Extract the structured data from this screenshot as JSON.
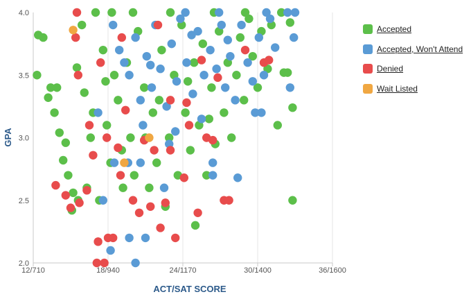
{
  "chart_data": {
    "type": "scatter",
    "title": "",
    "xlabel": "ACT/SAT SCORE",
    "ylabel": "GPA",
    "x_axis": {
      "scale": "ACT composite (paired SAT equivalent shown in tick labels)",
      "range": [
        12,
        36
      ],
      "ticks": [
        12,
        18,
        24,
        30,
        36
      ],
      "tick_labels": [
        "12/710",
        "18/940",
        "24/1170",
        "30/1400",
        "36/1600"
      ]
    },
    "y_axis": {
      "range": [
        2.0,
        4.0
      ],
      "ticks": [
        2.0,
        2.5,
        3.0,
        3.5,
        4.0
      ],
      "tick_labels": [
        "2.0",
        "2.5",
        "3.0",
        "3.5",
        "4.0"
      ]
    },
    "grid": {
      "vertical": true,
      "horizontal": false
    },
    "legend_position": "right",
    "colors": {
      "accepted": "#5cbf4a",
      "wont_attend": "#5a9bd5",
      "denied": "#e84c4c",
      "waitlisted": "#f0a742",
      "axis_title": "#2c5a8a",
      "grid": "#e6e6e6"
    },
    "series": [
      {
        "name": "Accepted",
        "key": "accepted",
        "points": [
          [
            12.4,
            3.82
          ],
          [
            12.8,
            3.8
          ],
          [
            12.3,
            3.5
          ],
          [
            13.4,
            3.4
          ],
          [
            13.9,
            3.4
          ],
          [
            13.2,
            3.32
          ],
          [
            13.7,
            3.2
          ],
          [
            14.1,
            3.04
          ],
          [
            14.6,
            2.96
          ],
          [
            14.4,
            2.82
          ],
          [
            14.8,
            2.7
          ],
          [
            15.1,
            2.42
          ],
          [
            15.2,
            2.56
          ],
          [
            15.6,
            2.5
          ],
          [
            15.5,
            3.56
          ],
          [
            15.9,
            3.9
          ],
          [
            16.1,
            3.36
          ],
          [
            16.6,
            3.0
          ],
          [
            16.3,
            2.6
          ],
          [
            16.8,
            3.2
          ],
          [
            17.3,
            2.5
          ],
          [
            17.0,
            4.0
          ],
          [
            17.6,
            3.7
          ],
          [
            17.9,
            3.1
          ],
          [
            18.2,
            2.8
          ],
          [
            18.5,
            3.5
          ],
          [
            18.8,
            3.3
          ],
          [
            19.1,
            2.9
          ],
          [
            19.5,
            3.6
          ],
          [
            19.8,
            3.0
          ],
          [
            20.1,
            2.7
          ],
          [
            20.4,
            3.85
          ],
          [
            20.9,
            3.4
          ],
          [
            21.3,
            2.6
          ],
          [
            21.6,
            3.2
          ],
          [
            21.9,
            2.8
          ],
          [
            22.3,
            3.7
          ],
          [
            22.6,
            2.45
          ],
          [
            22.9,
            3.0
          ],
          [
            23.3,
            3.5
          ],
          [
            23.6,
            2.7
          ],
          [
            23.9,
            3.9
          ],
          [
            24.2,
            3.2
          ],
          [
            24.6,
            2.9
          ],
          [
            24.9,
            3.6
          ],
          [
            25.0,
            2.3
          ],
          [
            25.3,
            3.1
          ],
          [
            25.6,
            3.75
          ],
          [
            25.9,
            2.7
          ],
          [
            26.3,
            3.4
          ],
          [
            26.6,
            2.95
          ],
          [
            26.9,
            3.85
          ],
          [
            27.3,
            3.2
          ],
          [
            27.6,
            3.6
          ],
          [
            27.9,
            3.0
          ],
          [
            28.3,
            3.5
          ],
          [
            28.6,
            3.8
          ],
          [
            28.9,
            3.3
          ],
          [
            29.3,
            3.95
          ],
          [
            29.6,
            3.65
          ],
          [
            30.0,
            3.4
          ],
          [
            30.3,
            3.85
          ],
          [
            30.8,
            3.55
          ],
          [
            31.1,
            3.9
          ],
          [
            31.6,
            3.1
          ],
          [
            32.1,
            3.52
          ],
          [
            32.4,
            3.52
          ],
          [
            32.6,
            3.92
          ],
          [
            32.8,
            2.5
          ],
          [
            32.8,
            3.24
          ],
          [
            31.9,
            4.0
          ],
          [
            29.0,
            4.0
          ],
          [
            26.5,
            4.0
          ],
          [
            23.0,
            4.0
          ],
          [
            20.0,
            4.0
          ],
          [
            18.3,
            4.0
          ],
          [
            21.0,
            3.0
          ],
          [
            19.2,
            2.6
          ],
          [
            17.8,
            3.45
          ],
          [
            24.4,
            3.45
          ],
          [
            26.1,
            3.15
          ],
          [
            22.1,
            3.3
          ]
        ]
      },
      {
        "name": "Accepted, Won't Attend",
        "key": "wont_attend",
        "points": [
          [
            17.2,
            3.2
          ],
          [
            17.6,
            2.5
          ],
          [
            18.4,
            3.9
          ],
          [
            18.9,
            3.7
          ],
          [
            19.3,
            3.6
          ],
          [
            19.7,
            3.5
          ],
          [
            20.2,
            3.8
          ],
          [
            20.6,
            3.3
          ],
          [
            21.1,
            3.65
          ],
          [
            21.5,
            3.4
          ],
          [
            21.8,
            3.9
          ],
          [
            22.2,
            3.55
          ],
          [
            22.7,
            3.25
          ],
          [
            23.1,
            3.75
          ],
          [
            23.5,
            3.45
          ],
          [
            23.8,
            3.95
          ],
          [
            24.3,
            3.6
          ],
          [
            24.8,
            3.35
          ],
          [
            25.2,
            3.85
          ],
          [
            25.7,
            3.5
          ],
          [
            26.2,
            3.7
          ],
          [
            26.7,
            3.55
          ],
          [
            27.1,
            3.9
          ],
          [
            27.4,
            3.4
          ],
          [
            27.8,
            3.65
          ],
          [
            28.2,
            3.3
          ],
          [
            28.7,
            3.9
          ],
          [
            29.2,
            3.6
          ],
          [
            29.6,
            3.45
          ],
          [
            30.1,
            3.8
          ],
          [
            30.5,
            3.5
          ],
          [
            31.0,
            3.95
          ],
          [
            31.4,
            3.72
          ],
          [
            32.6,
            3.4
          ],
          [
            32.9,
            3.8
          ],
          [
            29.8,
            3.2
          ],
          [
            30.3,
            3.2
          ],
          [
            28.4,
            2.68
          ],
          [
            26.4,
            2.8
          ],
          [
            26.4,
            2.7
          ],
          [
            22.5,
            2.6
          ],
          [
            21.0,
            2.2
          ],
          [
            19.7,
            2.2
          ],
          [
            18.2,
            2.1
          ],
          [
            20.2,
            2.0
          ],
          [
            18.5,
            2.8
          ],
          [
            19.6,
            2.8
          ],
          [
            20.6,
            2.8
          ],
          [
            24.2,
            4.0
          ],
          [
            26.9,
            4.0
          ],
          [
            30.7,
            4.0
          ],
          [
            32.4,
            4.0
          ],
          [
            33.0,
            4.0
          ],
          [
            20.8,
            3.1
          ],
          [
            23.4,
            3.05
          ],
          [
            25.5,
            3.15
          ],
          [
            22.9,
            2.95
          ],
          [
            21.4,
            3.58
          ],
          [
            24.7,
            3.82
          ],
          [
            27.6,
            3.78
          ]
        ]
      },
      {
        "name": "Denied",
        "key": "denied",
        "points": [
          [
            15.5,
            4.0
          ],
          [
            15.6,
            3.5
          ],
          [
            15.4,
            3.8
          ],
          [
            13.8,
            2.62
          ],
          [
            14.6,
            2.54
          ],
          [
            15.0,
            2.44
          ],
          [
            15.7,
            2.48
          ],
          [
            16.3,
            2.58
          ],
          [
            17.1,
            2.0
          ],
          [
            17.7,
            2.0
          ],
          [
            17.2,
            2.17
          ],
          [
            18.0,
            2.2
          ],
          [
            18.4,
            2.2
          ],
          [
            16.5,
            3.1
          ],
          [
            16.8,
            2.86
          ],
          [
            17.4,
            3.6
          ],
          [
            17.9,
            3.0
          ],
          [
            19.0,
            2.7
          ],
          [
            19.4,
            3.22
          ],
          [
            20.0,
            2.5
          ],
          [
            20.5,
            2.4
          ],
          [
            20.9,
            2.98
          ],
          [
            21.4,
            2.45
          ],
          [
            21.7,
            2.9
          ],
          [
            22.2,
            2.28
          ],
          [
            22.6,
            2.48
          ],
          [
            23.0,
            2.9
          ],
          [
            23.4,
            2.2
          ],
          [
            24.1,
            2.68
          ],
          [
            24.5,
            3.1
          ],
          [
            25.2,
            2.4
          ],
          [
            25.9,
            3.0
          ],
          [
            26.4,
            2.98
          ],
          [
            27.3,
            2.5
          ],
          [
            27.7,
            2.5
          ],
          [
            29.0,
            3.7
          ],
          [
            30.5,
            3.6
          ],
          [
            30.9,
            3.62
          ],
          [
            19.1,
            3.8
          ],
          [
            22.0,
            3.9
          ],
          [
            24.3,
            3.28
          ],
          [
            25.5,
            3.62
          ],
          [
            26.8,
            3.48
          ],
          [
            18.8,
            2.92
          ],
          [
            23.0,
            3.3
          ]
        ]
      },
      {
        "name": "Wait Listed",
        "key": "waitlisted",
        "points": [
          [
            15.2,
            3.86
          ],
          [
            19.3,
            2.8
          ],
          [
            21.3,
            3.0
          ]
        ]
      }
    ]
  }
}
